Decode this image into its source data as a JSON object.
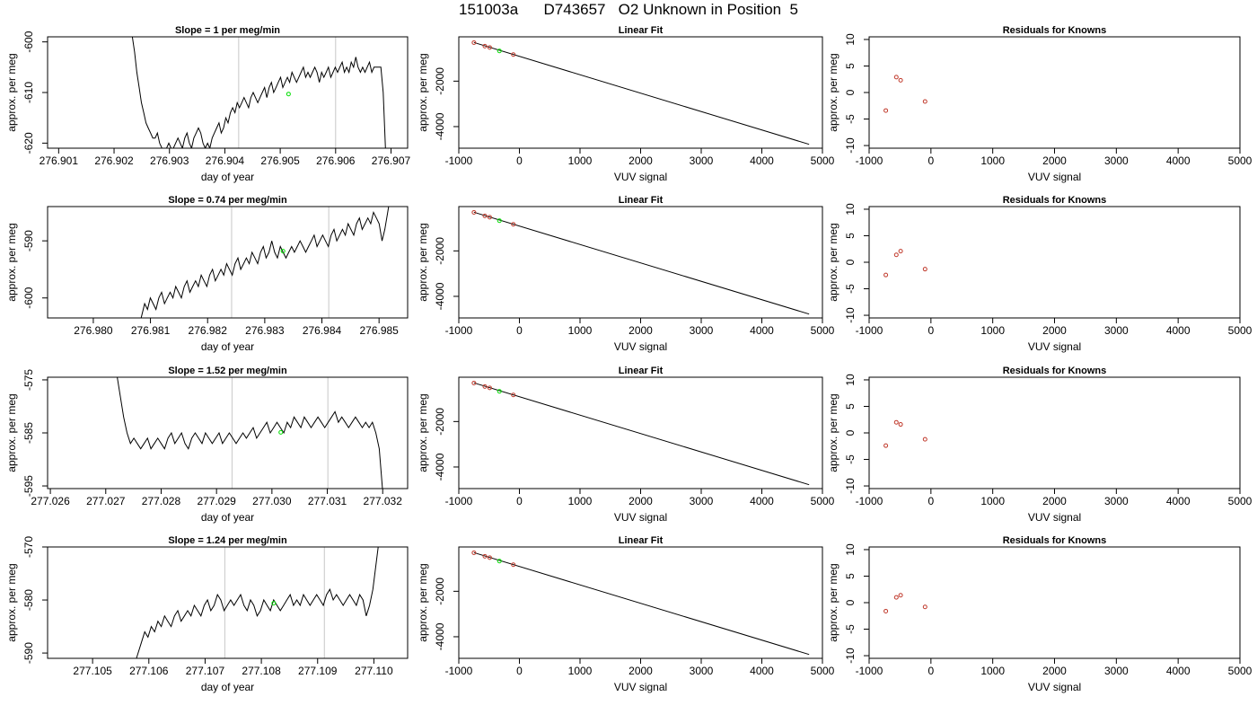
{
  "figure_title": "151003a      D743657   O2 Unknown in Position  5",
  "colors": {
    "line": "#000000",
    "unknown_point": "#00dd00",
    "known_point": "#c0392b",
    "vline": "#c8c8c8"
  },
  "chart_data": [
    {
      "type": "line",
      "panel": "time-series-1",
      "title": "Slope =  1  per meg/min",
      "xlabel": "day of year",
      "ylabel": "approx. per meg",
      "xlim": [
        276.9008,
        276.9073
      ],
      "ylim": [
        -621,
        -599
      ],
      "y_reversed": true,
      "xticks": [
        "276.901",
        "276.902",
        "276.903",
        "276.904",
        "276.905",
        "276.906",
        "276.907"
      ],
      "yticks": [
        "-600",
        "-610",
        "-620"
      ],
      "x_start": 276.9013,
      "x_end": 276.9069,
      "y": [
        -597,
        -597,
        -597,
        -597,
        -597,
        -597,
        -597,
        -597,
        -597,
        -597,
        -597,
        -597,
        -597,
        -597,
        -597,
        -597,
        -597,
        -597,
        -597,
        -597,
        -597,
        -597,
        -597,
        -597,
        -597,
        -599,
        -602,
        -606,
        -609,
        -612,
        -614,
        -616,
        -617,
        -618,
        -619,
        -619,
        -618,
        -620,
        -621,
        -621,
        -621,
        -620,
        -621,
        -621,
        -620,
        -619,
        -620,
        -621,
        -619,
        -618,
        -620,
        -621,
        -619,
        -618,
        -617,
        -618,
        -620,
        -621,
        -620,
        -621,
        -619,
        -618,
        -617,
        -616,
        -618,
        -617,
        -615,
        -616,
        -614,
        -613,
        -614,
        -612,
        -613,
        -612,
        -611,
        -612,
        -613,
        -611,
        -610,
        -611,
        -612,
        -611,
        -610,
        -609,
        -611,
        -609,
        -608,
        -610,
        -609,
        -608,
        -607,
        -609,
        -608,
        -607,
        -608,
        -606,
        -607,
        -608,
        -607,
        -606,
        -605,
        -607,
        -606,
        -607,
        -606,
        -605,
        -606,
        -608,
        -606,
        -607,
        -606,
        -605,
        -607,
        -606,
        -605,
        -606,
        -605,
        -604,
        -606,
        -605,
        -606,
        -604,
        -605,
        -603,
        -605,
        -606,
        -605,
        -606,
        -605,
        -604,
        -606,
        -605,
        -605,
        -605,
        -605,
        -610,
        -621
      ],
      "vlines": [
        276.90425,
        276.906
      ],
      "unknown_point": [
        276.90515,
        -610.3
      ]
    },
    {
      "type": "line",
      "panel": "time-series-2",
      "title": "Slope =  0.74  per meg/min",
      "xlabel": "day of year",
      "ylabel": "approx. per meg",
      "xlim": [
        276.9792,
        276.9855
      ],
      "ylim": [
        -603.5,
        -584
      ],
      "y_reversed": true,
      "xticks": [
        "276.980",
        "276.981",
        "276.982",
        "276.983",
        "276.984",
        "276.985"
      ],
      "yticks": [
        "-590",
        "-600"
      ],
      "x_start": 276.9808,
      "x_end": 276.9852,
      "y": [
        -605,
        -603,
        -601,
        -602,
        -600,
        -601,
        -602,
        -600,
        -599,
        -601,
        -600,
        -599,
        -600,
        -598,
        -599,
        -600,
        -598,
        -597,
        -599,
        -598,
        -597,
        -598,
        -596,
        -597,
        -598,
        -596,
        -595,
        -597,
        -596,
        -595,
        -596,
        -594,
        -595,
        -596,
        -594,
        -593,
        -595,
        -594,
        -593,
        -594,
        -592,
        -593,
        -594,
        -592,
        -591,
        -593,
        -592,
        -590,
        -592,
        -593,
        -591,
        -592,
        -593,
        -592,
        -591,
        -592,
        -591,
        -590,
        -591,
        -592,
        -591,
        -590,
        -589,
        -591,
        -590,
        -589,
        -590,
        -591,
        -589,
        -588,
        -590,
        -589,
        -588,
        -589,
        -587,
        -588,
        -589,
        -587,
        -586,
        -588,
        -587,
        -586,
        -587,
        -585,
        -586,
        -587,
        -590,
        -588,
        -585,
        -582
      ],
      "vlines": [
        276.98242,
        276.98412
      ],
      "unknown_point": [
        276.98332,
        -591.8
      ]
    },
    {
      "type": "line",
      "panel": "time-series-3",
      "title": "Slope =  1.52  per meg/min",
      "xlabel": "day of year",
      "ylabel": "approx. per meg",
      "xlim": [
        277.02595,
        277.03245
      ],
      "ylim": [
        -595.5,
        -574.5
      ],
      "y_reversed": true,
      "xticks": [
        "277.026",
        "277.027",
        "277.028",
        "277.029",
        "277.030",
        "277.031",
        "277.032"
      ],
      "yticks": [
        "-575",
        "-585",
        "-595"
      ],
      "x_start": 277.0272,
      "x_end": 277.032,
      "y": [
        -574,
        -578,
        -582,
        -585,
        -587,
        -586,
        -587,
        -588,
        -587,
        -586,
        -588,
        -587,
        -586,
        -587,
        -588,
        -586,
        -585,
        -587,
        -586,
        -585,
        -587,
        -588,
        -586,
        -585,
        -586,
        -587,
        -585,
        -586,
        -587,
        -586,
        -585,
        -587,
        -586,
        -585,
        -586,
        -587,
        -586,
        -585,
        -586,
        -585,
        -584,
        -586,
        -585,
        -584,
        -583,
        -585,
        -584,
        -583,
        -584,
        -585,
        -583,
        -584,
        -582,
        -583,
        -584,
        -582,
        -583,
        -584,
        -583,
        -582,
        -583,
        -584,
        -583,
        -582,
        -581,
        -583,
        -582,
        -583,
        -584,
        -583,
        -582,
        -583,
        -584,
        -583,
        -584,
        -583,
        -585,
        -588,
        -596
      ],
      "vlines": [
        277.02928,
        277.03101
      ],
      "unknown_point": [
        277.03016,
        -584.9
      ]
    },
    {
      "type": "line",
      "panel": "time-series-4",
      "title": "Slope =  1.24  per meg/min",
      "xlabel": "day of year",
      "ylabel": "approx. per meg",
      "xlim": [
        277.1042,
        277.1106
      ],
      "ylim": [
        -591,
        -570
      ],
      "y_reversed": true,
      "xticks": [
        "277.105",
        "277.106",
        "277.107",
        "277.108",
        "277.109",
        "277.110"
      ],
      "yticks": [
        "-570",
        "-580",
        "-590"
      ],
      "x_start": 277.10575,
      "x_end": 277.1101,
      "y": [
        -592,
        -590,
        -588,
        -586,
        -587,
        -585,
        -586,
        -584,
        -585,
        -583,
        -584,
        -585,
        -583,
        -582,
        -584,
        -583,
        -582,
        -583,
        -581,
        -582,
        -583,
        -581,
        -580,
        -582,
        -581,
        -579,
        -580,
        -582,
        -581,
        -580,
        -581,
        -580,
        -579,
        -581,
        -582,
        -580,
        -581,
        -583,
        -582,
        -580,
        -581,
        -582,
        -580,
        -581,
        -582,
        -581,
        -580,
        -579,
        -581,
        -580,
        -581,
        -579,
        -580,
        -581,
        -580,
        -579,
        -580,
        -581,
        -579,
        -578,
        -580,
        -579,
        -580,
        -581,
        -580,
        -579,
        -580,
        -581,
        -579,
        -580,
        -583,
        -581,
        -578,
        -573,
        -568
      ],
      "vlines": [
        277.10735,
        277.10912
      ],
      "unknown_point": [
        277.10822,
        -580.6
      ]
    },
    {
      "type": "line",
      "panel": "linear-fit",
      "title": "Linear Fit",
      "xlabel": "VUV signal",
      "ylabel": "approx. per meg",
      "xlim": [
        -1000,
        5000
      ],
      "ylim": [
        -4950,
        -50
      ],
      "xticks": [
        "-1000",
        "0",
        "1000",
        "2000",
        "3000",
        "4000",
        "5000"
      ],
      "yticks": [
        "-2000",
        "-4000"
      ],
      "fit_line": [
        [
          -750,
          -300
        ],
        [
          4780,
          -4780
        ]
      ],
      "known_points": [
        [
          -750,
          -305
        ],
        [
          -570,
          -460
        ],
        [
          -490,
          -520
        ],
        [
          -100,
          -830
        ]
      ],
      "unknown_point": [
        -330,
        -670
      ]
    },
    {
      "type": "scatter",
      "panel": "residuals",
      "title": "Residuals for Knowns",
      "xlabel": "VUV signal",
      "ylabel": "approx. per meg",
      "xlim": [
        -1000,
        5000
      ],
      "ylim": [
        -10.5,
        10.5
      ],
      "xticks": [
        "-1000",
        "0",
        "1000",
        "2000",
        "3000",
        "4000",
        "5000"
      ],
      "yticks": [
        "10",
        "5",
        "0",
        "-5",
        "-10"
      ],
      "rows": [
        [
          [
            -730,
            -3.4
          ],
          [
            -560,
            2.9
          ],
          [
            -490,
            2.3
          ],
          [
            -95,
            -1.7
          ]
        ],
        [
          [
            -730,
            -2.4
          ],
          [
            -560,
            1.4
          ],
          [
            -490,
            2.1
          ],
          [
            -95,
            -1.3
          ]
        ],
        [
          [
            -730,
            -2.4
          ],
          [
            -560,
            2.0
          ],
          [
            -490,
            1.6
          ],
          [
            -95,
            -1.2
          ]
        ],
        [
          [
            -730,
            -1.6
          ],
          [
            -560,
            1.0
          ],
          [
            -490,
            1.4
          ],
          [
            -95,
            -0.8
          ]
        ]
      ]
    }
  ]
}
